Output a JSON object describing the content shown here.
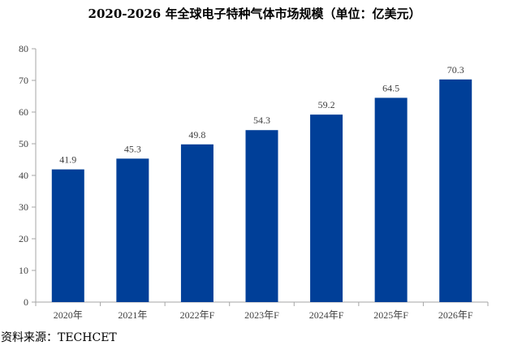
{
  "chart_data": {
    "type": "bar",
    "title": "2020-2026 年全球电子特种气体市场规模（单位：亿美元）",
    "categories": [
      "2020年",
      "2021年",
      "2022年F",
      "2023年F",
      "2024年F",
      "2025年F",
      "2026年F"
    ],
    "values": [
      41.9,
      45.3,
      49.8,
      54.3,
      59.2,
      64.5,
      70.3
    ],
    "value_labels": [
      "41.9",
      "45.3",
      "49.8",
      "54.3",
      "59.2",
      "64.5",
      "70.3"
    ],
    "yticks": [
      0,
      10,
      20,
      30,
      40,
      50,
      60,
      70,
      80
    ],
    "ylim": [
      0,
      80
    ],
    "grid": false,
    "legend": "none",
    "bar_color": "#003f98",
    "axis_color": "#a6a6a6",
    "xlabel": "",
    "ylabel": ""
  },
  "source": "资料来源：TECHCET"
}
